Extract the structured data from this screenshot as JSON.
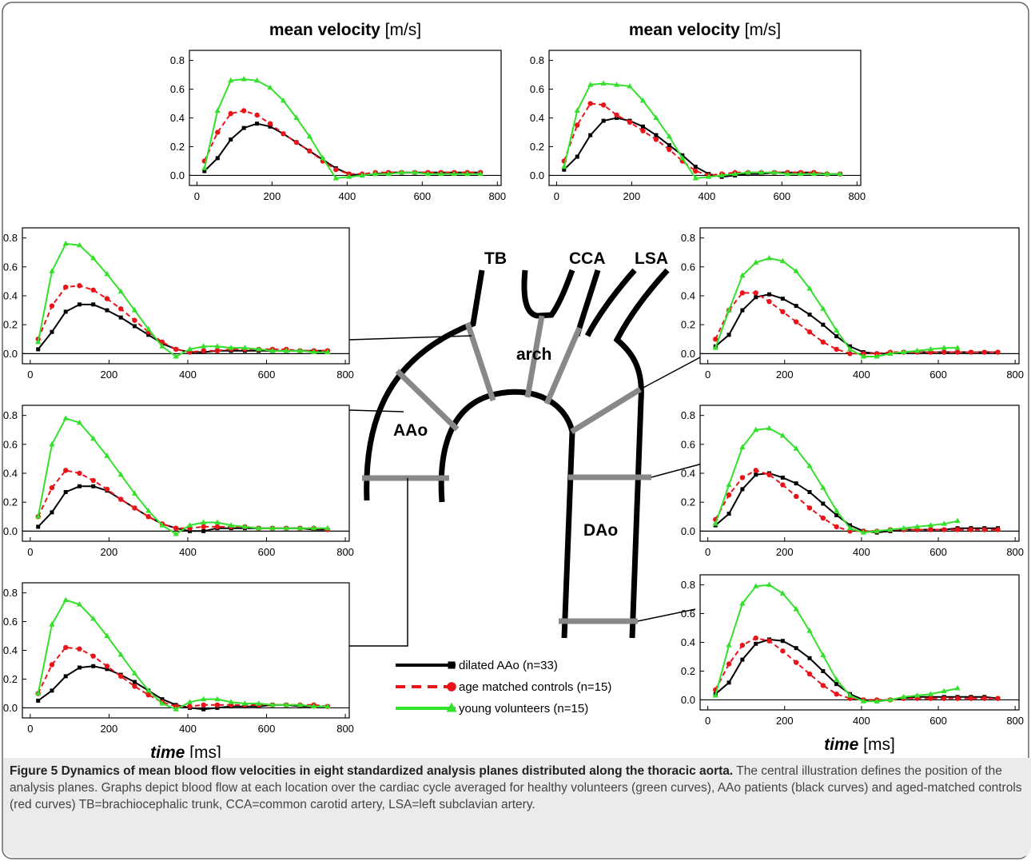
{
  "chart_data": [
    {
      "type": "line",
      "title": "mean velocity",
      "title_unit": "[m/s]",
      "x": [
        20,
        55,
        90,
        125,
        160,
        195,
        230,
        265,
        300,
        335,
        370,
        405,
        440,
        475,
        510,
        545,
        580,
        615,
        650,
        685,
        720,
        755
      ],
      "xlim": [
        -20,
        810
      ],
      "ylim": [
        -0.07,
        0.87
      ],
      "xticks": [
        0,
        200,
        400,
        600,
        800
      ],
      "yticks": [
        {
          "value": 0,
          "label": "0.0"
        },
        0.2,
        0.4,
        0.6,
        0.8
      ],
      "series": [
        {
          "values": [
            0.03,
            0.12,
            0.25,
            0.33,
            0.36,
            0.34,
            0.29,
            0.23,
            0.17,
            0.11,
            0.05,
            0.01,
            0.0,
            0.01,
            0.02,
            0.02,
            0.02,
            0.02,
            0.02,
            0.02,
            0.02,
            0.02
          ]
        },
        {
          "values": [
            0.1,
            0.3,
            0.43,
            0.45,
            0.42,
            0.36,
            0.29,
            0.23,
            0.17,
            0.1,
            0.04,
            0.01,
            0.01,
            0.02,
            0.02,
            0.02,
            0.02,
            0.02,
            0.02,
            0.02,
            0.02,
            0.02
          ]
        },
        {
          "values": [
            0.05,
            0.45,
            0.66,
            0.67,
            0.66,
            0.61,
            0.52,
            0.4,
            0.27,
            0.12,
            -0.02,
            -0.01,
            0.0,
            0.01,
            0.01,
            0.02,
            0.02,
            0.01,
            0.01,
            0.01,
            0.01,
            0.01
          ]
        }
      ]
    },
    {
      "type": "line",
      "title": "mean velocity",
      "title_unit": "[m/s]",
      "x": [
        20,
        55,
        90,
        125,
        160,
        195,
        230,
        265,
        300,
        335,
        370,
        405,
        440,
        475,
        510,
        545,
        580,
        615,
        650,
        685,
        720,
        755
      ],
      "xlim": [
        -20,
        810
      ],
      "ylim": [
        -0.07,
        0.87
      ],
      "xticks": [
        0,
        200,
        400,
        600,
        800
      ],
      "yticks": [
        {
          "value": 0,
          "label": "0.0"
        },
        0.2,
        0.4,
        0.6,
        0.8
      ],
      "series": [
        {
          "values": [
            0.04,
            0.13,
            0.28,
            0.38,
            0.4,
            0.38,
            0.34,
            0.28,
            0.21,
            0.14,
            0.06,
            0.01,
            -0.01,
            0.0,
            0.01,
            0.01,
            0.02,
            0.02,
            0.02,
            0.02,
            0.01,
            0.01
          ]
        },
        {
          "values": [
            0.1,
            0.35,
            0.5,
            0.49,
            0.42,
            0.37,
            0.31,
            0.25,
            0.18,
            0.1,
            0.03,
            0.0,
            0.01,
            0.02,
            0.02,
            0.02,
            0.02,
            0.02,
            0.02,
            0.02,
            0.01,
            0.01
          ]
        },
        {
          "values": [
            0.06,
            0.45,
            0.63,
            0.64,
            0.63,
            0.62,
            0.52,
            0.4,
            0.27,
            0.12,
            -0.02,
            -0.01,
            0.0,
            0.01,
            0.02,
            0.02,
            0.02,
            0.01,
            0.01,
            0.01,
            0.01,
            0.01
          ]
        }
      ]
    },
    {
      "type": "line",
      "x": [
        20,
        55,
        90,
        125,
        160,
        195,
        230,
        265,
        300,
        335,
        370,
        405,
        440,
        475,
        510,
        545,
        580,
        615,
        650,
        685,
        720,
        755
      ],
      "xlim": [
        -20,
        810
      ],
      "ylim": [
        -0.07,
        0.87
      ],
      "xticks": [
        0,
        200,
        400,
        600,
        800
      ],
      "yticks": [
        {
          "value": 0,
          "label": "0.0"
        },
        0.2,
        0.4,
        0.6,
        0.8
      ],
      "series": [
        {
          "values": [
            0.03,
            0.15,
            0.29,
            0.34,
            0.34,
            0.3,
            0.25,
            0.19,
            0.13,
            0.07,
            0.03,
            0.01,
            0.01,
            0.02,
            0.02,
            0.02,
            0.02,
            0.02,
            0.02,
            0.02,
            0.02,
            0.02
          ]
        },
        {
          "values": [
            0.1,
            0.33,
            0.46,
            0.47,
            0.44,
            0.38,
            0.31,
            0.23,
            0.15,
            0.08,
            0.03,
            0.01,
            0.02,
            0.02,
            0.03,
            0.03,
            0.03,
            0.03,
            0.03,
            0.02,
            0.02,
            0.02
          ]
        },
        {
          "values": [
            0.08,
            0.57,
            0.76,
            0.75,
            0.66,
            0.55,
            0.43,
            0.3,
            0.17,
            0.05,
            -0.02,
            0.03,
            0.05,
            0.05,
            0.04,
            0.04,
            0.03,
            0.02,
            0.02,
            0.02,
            0.01,
            0.01
          ]
        }
      ]
    },
    {
      "type": "line",
      "x": [
        20,
        55,
        90,
        125,
        160,
        195,
        230,
        265,
        300,
        335,
        370,
        405,
        440,
        475,
        510,
        545,
        580,
        615,
        650,
        685,
        720,
        755
      ],
      "xlim": [
        -20,
        810
      ],
      "ylim": [
        -0.07,
        0.87
      ],
      "xticks": [
        0,
        200,
        400,
        600,
        800
      ],
      "yticks": [
        {
          "value": 0,
          "label": "0.0"
        },
        0.2,
        0.4,
        0.6,
        0.8
      ],
      "series": [
        {
          "values": [
            0.03,
            0.13,
            0.27,
            0.31,
            0.31,
            0.28,
            0.22,
            0.16,
            0.1,
            0.05,
            0.02,
            0.0,
            0.0,
            0.02,
            0.02,
            0.02,
            0.02,
            0.02,
            0.02,
            0.02,
            0.01,
            0.01
          ]
        },
        {
          "values": [
            0.1,
            0.3,
            0.42,
            0.4,
            0.35,
            0.29,
            0.22,
            0.16,
            0.1,
            0.05,
            0.02,
            0.02,
            0.03,
            0.03,
            0.03,
            0.03,
            0.02,
            0.02,
            0.02,
            0.02,
            0.02,
            0.01
          ]
        },
        {
          "values": [
            0.1,
            0.6,
            0.78,
            0.75,
            0.64,
            0.52,
            0.39,
            0.26,
            0.14,
            0.04,
            -0.02,
            0.04,
            0.06,
            0.06,
            0.04,
            0.03,
            0.02,
            0.02,
            0.02,
            0.02,
            0.02,
            0.02
          ]
        }
      ]
    },
    {
      "type": "line",
      "xlabel": "time",
      "xlabel_unit": "[ms]",
      "x": [
        20,
        55,
        90,
        125,
        160,
        195,
        230,
        265,
        300,
        335,
        370,
        405,
        440,
        475,
        510,
        545,
        580,
        615,
        650,
        685,
        720,
        755
      ],
      "xlim": [
        -20,
        810
      ],
      "ylim": [
        -0.07,
        0.87
      ],
      "xticks": [
        0,
        200,
        400,
        600,
        800
      ],
      "yticks": [
        {
          "value": 0,
          "label": "0.0"
        },
        0.2,
        0.4,
        0.6,
        0.8
      ],
      "series": [
        {
          "values": [
            0.05,
            0.12,
            0.22,
            0.28,
            0.29,
            0.27,
            0.23,
            0.18,
            0.12,
            0.06,
            0.02,
            0.0,
            -0.01,
            0.0,
            0.01,
            0.01,
            0.01,
            0.02,
            0.02,
            0.01,
            0.01,
            0.01
          ]
        },
        {
          "values": [
            0.1,
            0.3,
            0.42,
            0.41,
            0.36,
            0.29,
            0.22,
            0.15,
            0.09,
            0.04,
            0.01,
            0.01,
            0.02,
            0.02,
            0.02,
            0.02,
            0.02,
            0.02,
            0.02,
            0.02,
            0.02,
            0.01
          ]
        },
        {
          "values": [
            0.1,
            0.58,
            0.75,
            0.72,
            0.62,
            0.5,
            0.37,
            0.24,
            0.12,
            0.03,
            -0.01,
            0.04,
            0.06,
            0.06,
            0.04,
            0.03,
            0.03,
            0.02,
            0.02,
            0.02,
            0.01,
            0.01
          ]
        }
      ]
    },
    {
      "type": "line",
      "x": [
        20,
        55,
        90,
        125,
        160,
        195,
        230,
        265,
        300,
        335,
        370,
        405,
        440,
        475,
        510,
        545,
        580,
        615,
        650,
        685,
        720,
        755
      ],
      "xlim": [
        -20,
        810
      ],
      "ylim": [
        -0.07,
        0.87
      ],
      "xticks": [
        0,
        200,
        400,
        600,
        800
      ],
      "yticks": [
        {
          "value": 0,
          "label": "0.0"
        },
        0.2,
        0.4,
        0.6,
        0.8
      ],
      "series": [
        {
          "values": [
            0.05,
            0.13,
            0.3,
            0.39,
            0.41,
            0.38,
            0.33,
            0.27,
            0.2,
            0.12,
            0.05,
            0.01,
            0.0,
            0.0,
            0.01,
            0.01,
            0.01,
            0.01,
            0.01,
            0.01,
            0.01,
            0.01
          ]
        },
        {
          "values": [
            0.1,
            0.3,
            0.42,
            0.42,
            0.36,
            0.29,
            0.22,
            0.15,
            0.08,
            0.03,
            0.0,
            0.0,
            0.0,
            0.01,
            0.01,
            0.01,
            0.01,
            0.01,
            0.01,
            0.01,
            0.01,
            0.01
          ]
        },
        {
          "values": [
            0.04,
            0.3,
            0.54,
            0.63,
            0.66,
            0.64,
            0.57,
            0.45,
            0.31,
            0.16,
            0.03,
            -0.02,
            -0.02,
            0.0,
            0.01,
            0.02,
            0.03,
            0.04,
            0.04,
            null,
            null,
            null
          ]
        }
      ]
    },
    {
      "type": "line",
      "x": [
        20,
        55,
        90,
        125,
        160,
        195,
        230,
        265,
        300,
        335,
        370,
        405,
        440,
        475,
        510,
        545,
        580,
        615,
        650,
        685,
        720,
        755
      ],
      "xlim": [
        -20,
        810
      ],
      "ylim": [
        -0.07,
        0.87
      ],
      "xticks": [
        0,
        200,
        400,
        600,
        800
      ],
      "yticks": [
        {
          "value": 0,
          "label": "0.0"
        },
        0.2,
        0.4,
        0.6,
        0.8
      ],
      "series": [
        {
          "values": [
            0.04,
            0.12,
            0.29,
            0.39,
            0.4,
            0.37,
            0.33,
            0.27,
            0.19,
            0.11,
            0.04,
            0.0,
            -0.01,
            0.0,
            0.01,
            0.01,
            0.01,
            0.01,
            0.02,
            0.02,
            0.02,
            0.02
          ]
        },
        {
          "values": [
            0.08,
            0.25,
            0.37,
            0.42,
            0.39,
            0.32,
            0.24,
            0.16,
            0.09,
            0.03,
            0.0,
            0.0,
            0.0,
            0.01,
            0.01,
            0.01,
            0.01,
            0.01,
            0.01,
            0.01,
            0.01,
            0.01
          ]
        },
        {
          "values": [
            0.05,
            0.32,
            0.58,
            0.7,
            0.71,
            0.66,
            0.57,
            0.45,
            0.3,
            0.14,
            0.02,
            -0.01,
            0.0,
            0.01,
            0.02,
            0.03,
            0.04,
            0.05,
            0.07,
            null,
            null,
            null
          ]
        }
      ]
    },
    {
      "type": "line",
      "xlabel": "time",
      "xlabel_unit": "[ms]",
      "x": [
        20,
        55,
        90,
        125,
        160,
        195,
        230,
        265,
        300,
        335,
        370,
        405,
        440,
        475,
        510,
        545,
        580,
        615,
        650,
        685,
        720,
        755
      ],
      "xlim": [
        -20,
        810
      ],
      "ylim": [
        -0.07,
        0.87
      ],
      "xticks": [
        0,
        200,
        400,
        600,
        800
      ],
      "yticks": [
        {
          "value": 0,
          "label": "0.0"
        },
        0.2,
        0.4,
        0.6,
        0.8
      ],
      "series": [
        {
          "values": [
            0.04,
            0.12,
            0.28,
            0.39,
            0.42,
            0.41,
            0.36,
            0.29,
            0.2,
            0.11,
            0.04,
            0.0,
            -0.01,
            0.0,
            0.01,
            0.02,
            0.02,
            0.02,
            0.02,
            0.02,
            0.02,
            0.01
          ]
        },
        {
          "values": [
            0.07,
            0.25,
            0.38,
            0.43,
            0.41,
            0.34,
            0.26,
            0.18,
            0.1,
            0.04,
            0.01,
            0.0,
            0.0,
            0.0,
            0.01,
            0.01,
            0.01,
            0.01,
            0.01,
            0.01,
            0.01,
            0.01
          ]
        },
        {
          "values": [
            0.03,
            0.38,
            0.67,
            0.79,
            0.8,
            0.74,
            0.63,
            0.48,
            0.31,
            0.14,
            0.03,
            -0.01,
            -0.01,
            0.0,
            0.02,
            0.03,
            0.04,
            0.06,
            0.08,
            null,
            null,
            null
          ]
        }
      ]
    }
  ],
  "legend": [
    {
      "name": "dilated AAo (n=33)",
      "color": "#000000",
      "marker": "square"
    },
    {
      "name": "age matched controls (n=15)",
      "color": "#e8141a",
      "marker": "circle",
      "dash": true
    },
    {
      "name": "young volunteers (n=15)",
      "color": "#33e02a",
      "marker": "triangle"
    }
  ],
  "diagram": {
    "labels": [
      "TB",
      "CCA",
      "LSA",
      "arch",
      "AAo",
      "DAo"
    ]
  },
  "caption": {
    "label": "Figure 5",
    "title": "Dynamics of mean blood flow velocities in eight standardized analysis planes distributed along the thoracic aorta.",
    "text": "The central illustration defines the position of the analysis planes. Graphs depict blood flow at each location over the cardiac cycle averaged for healthy volunteers (green curves), AAo patients (black curves) and aged-matched controls (red curves) TB=brachiocephalic trunk, CCA=common carotid artery, LSA=left subclavian artery."
  }
}
